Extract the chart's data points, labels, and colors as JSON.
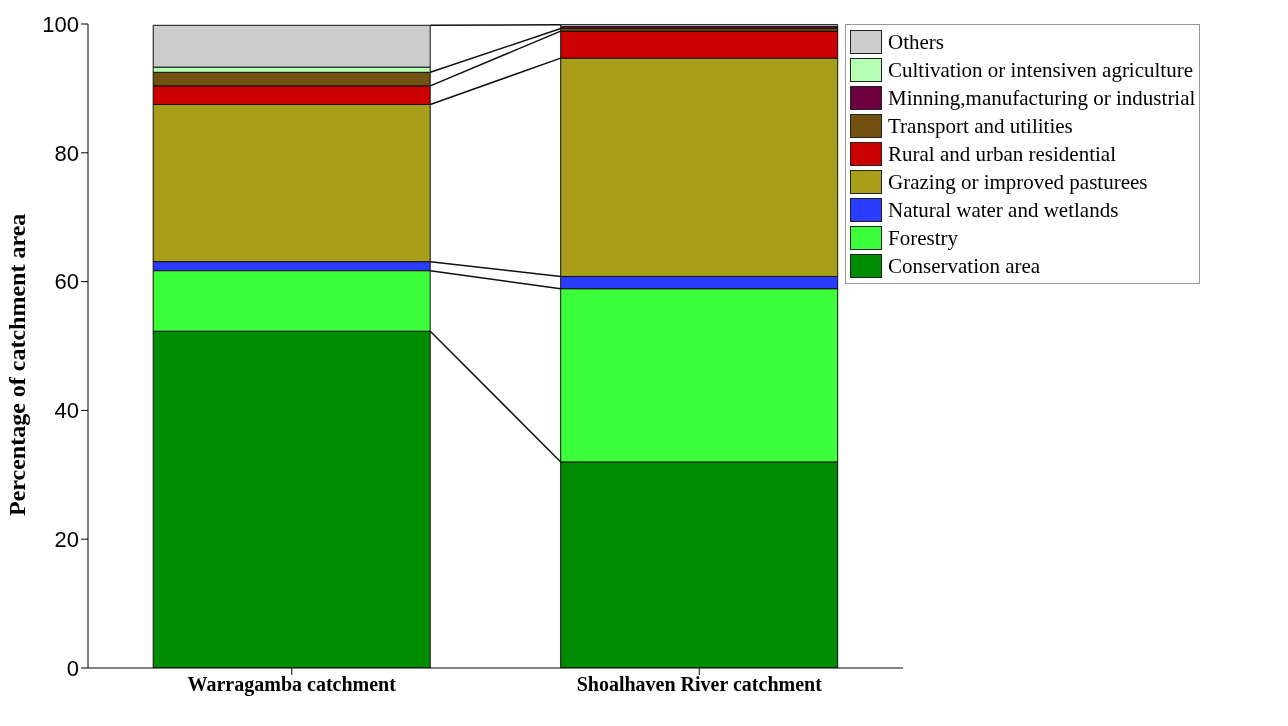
{
  "chart_data": {
    "type": "bar",
    "stacked": true,
    "ylabel": "Percentage of catchment area",
    "categories": [
      "Warragamba catchment",
      "Shoalhaven River catchment"
    ],
    "ylim": [
      0,
      100
    ],
    "yticks": [
      0,
      20,
      40,
      60,
      80,
      100
    ],
    "legend": "right",
    "grid": false,
    "series": [
      {
        "name": "Conservation area",
        "color": "#008c00",
        "values": [
          52.3,
          32.0
        ]
      },
      {
        "name": "Forestry",
        "color": "#3cff3c",
        "values": [
          9.4,
          26.9
        ]
      },
      {
        "name": "Natural water and wetlands",
        "color": "#2a3cff",
        "values": [
          1.4,
          1.9
        ]
      },
      {
        "name": "Grazing or improved pasturees",
        "color": "#a89e1a",
        "values": [
          24.4,
          33.9
        ]
      },
      {
        "name": "Rural and urban residential",
        "color": "#cc0000",
        "values": [
          2.9,
          4.2
        ]
      },
      {
        "name": "Transport and utilities",
        "color": "#735211",
        "values": [
          2.1,
          0.4
        ]
      },
      {
        "name": "Minning,manufacturing or industrial",
        "color": "#6e0040",
        "values": [
          null,
          0.3
        ]
      },
      {
        "name": "Cultivation or intensiven agriculture",
        "color": "#b4ffb4",
        "values": [
          0.8,
          null
        ]
      },
      {
        "name": "Others",
        "color": "#cccccc",
        "values": [
          6.5,
          0.3
        ]
      }
    ]
  }
}
